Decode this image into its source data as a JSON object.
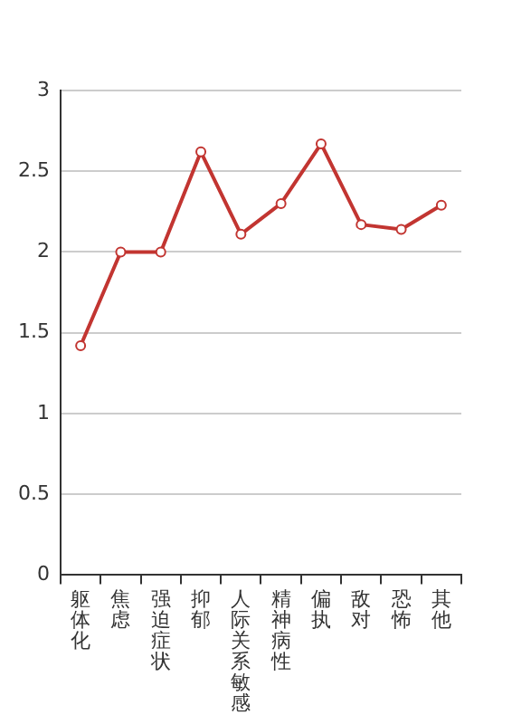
{
  "chart_data": {
    "type": "line",
    "categories": [
      "躯体化",
      "焦虑",
      "强迫症状",
      "抑郁",
      "人际关系敏感",
      "精神病性",
      "偏执",
      "敌对",
      "恐怖",
      "其他"
    ],
    "series": [
      {
        "color": "#c23531",
        "values": [
          1.42,
          2.0,
          2.0,
          2.62,
          2.11,
          2.3,
          2.67,
          2.17,
          2.14,
          2.29
        ]
      }
    ],
    "ylim": [
      0,
      3
    ],
    "yticks": [
      0,
      0.5,
      1,
      1.5,
      2,
      2.5,
      3
    ],
    "grid": "y",
    "legend": false,
    "marker": "circle",
    "line_style": "solid"
  }
}
